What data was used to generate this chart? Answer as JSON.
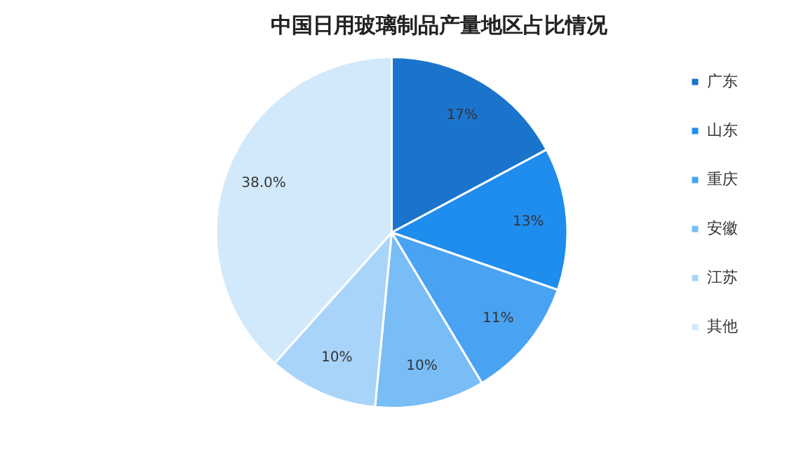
{
  "chart_data": {
    "type": "pie",
    "title": "中国日用玻璃制品产量地区占比情况",
    "categories": [
      "广东",
      "山东",
      "重庆",
      "安徽",
      "江苏",
      "其他"
    ],
    "values": [
      17,
      13,
      11,
      10,
      10,
      38.0
    ],
    "value_labels": [
      "17%",
      "13%",
      "11%",
      "10%",
      "10%",
      "38.0%"
    ],
    "colors": [
      "#1a74cc",
      "#1f8ded",
      "#4aa3f2",
      "#78bdf6",
      "#a9d4f9",
      "#d2e9fc"
    ],
    "legend": "right"
  }
}
